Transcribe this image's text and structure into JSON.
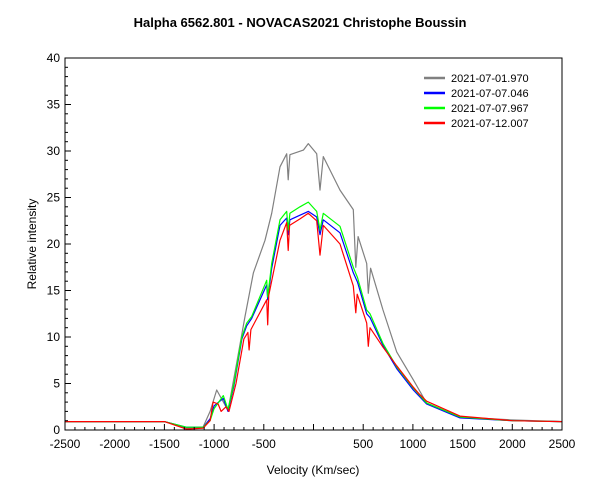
{
  "chart_data": {
    "type": "line",
    "title": "Halpha 6562.801 - NOVACAS2021   Christophe Boussin",
    "xlabel": "Velocity (Km/sec)",
    "ylabel": "Relative intensity",
    "xlim": [
      -2500,
      2500
    ],
    "ylim": [
      0,
      40
    ],
    "grid": false,
    "legend_position": "top-right",
    "x_tick_values": [
      -2500,
      -2000,
      -1500,
      -1000,
      -500,
      0,
      500,
      1000,
      1500,
      2000,
      2500
    ],
    "x_tick_labels": [
      "-2500",
      "-2000",
      "-1500",
      "-1000",
      "-500",
      "",
      "500",
      "1000",
      "1500",
      "2000",
      "2500"
    ],
    "y_tick_values": [
      0,
      5,
      10,
      15,
      20,
      25,
      30,
      35,
      40
    ],
    "y_tick_labels": [
      "0",
      "5",
      "10",
      "15",
      "20",
      "25",
      "30",
      "35",
      "40"
    ],
    "series": [
      {
        "name": "2021-07-01.970",
        "color": "#808080",
        "x": [
          -2500,
          -1500,
          -1276,
          -1112,
          -1040,
          -974,
          -860,
          -773,
          -689,
          -605,
          -488,
          -421,
          -337,
          -270,
          -255,
          -237,
          -102,
          -52,
          32,
          65,
          99,
          267,
          400,
          426,
          449,
          535,
          551,
          574,
          699,
          837,
          1004,
          1138,
          1474,
          1977,
          2500
        ],
        "y": [
          0.9,
          0.9,
          0.2,
          0.3,
          2.0,
          4.3,
          2.1,
          7.2,
          12.2,
          16.9,
          20.4,
          23.3,
          28.3,
          29.7,
          26.9,
          29.6,
          30.1,
          30.8,
          29.7,
          25.8,
          29.4,
          25.8,
          23.7,
          17.5,
          20.8,
          17.9,
          14.7,
          17.4,
          12.9,
          8.4,
          5.4,
          2.9,
          1.4,
          1.1,
          0.9
        ]
      },
      {
        "name": "2021-07-07.046",
        "color": "#0000ff",
        "x": [
          -2500,
          -1500,
          -1280,
          -1110,
          -1040,
          -1000,
          -907,
          -860,
          -800,
          -720,
          -672,
          -622,
          -471,
          -461,
          -421,
          -337,
          -270,
          -255,
          -237,
          -136,
          -52,
          32,
          65,
          99,
          267,
          400,
          443,
          535,
          568,
          699,
          837,
          1004,
          1138,
          1474,
          2000,
          2500
        ],
        "y": [
          0.9,
          0.9,
          0.3,
          0.3,
          1.2,
          2.6,
          3.4,
          2.0,
          4.8,
          9.8,
          11.2,
          12.0,
          15.6,
          14.0,
          17.4,
          22.0,
          22.8,
          21.0,
          22.6,
          23.1,
          23.5,
          22.9,
          21.0,
          22.6,
          21.2,
          16.9,
          15.9,
          12.5,
          12.1,
          9.1,
          6.6,
          4.3,
          2.8,
          1.3,
          1.0,
          0.9
        ]
      },
      {
        "name": "2021-07-07.967",
        "color": "#00ff00",
        "x": [
          -2500,
          -1500,
          -1280,
          -1110,
          -1040,
          -1000,
          -907,
          -860,
          -800,
          -720,
          -672,
          -622,
          -471,
          -461,
          -421,
          -337,
          -270,
          -255,
          -237,
          -136,
          -52,
          32,
          65,
          99,
          267,
          400,
          443,
          535,
          568,
          699,
          837,
          1004,
          1138,
          1474,
          2000,
          2500
        ],
        "y": [
          0.9,
          0.9,
          0.3,
          0.3,
          1.0,
          2.3,
          3.7,
          2.2,
          5.0,
          10.0,
          11.5,
          12.2,
          16.1,
          14.3,
          17.9,
          22.6,
          23.5,
          21.5,
          23.3,
          24.0,
          24.5,
          23.5,
          21.5,
          23.3,
          21.9,
          17.5,
          16.4,
          12.9,
          12.5,
          9.3,
          6.8,
          4.5,
          2.9,
          1.4,
          1.0,
          0.9
        ]
      },
      {
        "name": "2021-07-12.007",
        "color": "#ff0000",
        "x": [
          -2500,
          -1500,
          -1280,
          -1110,
          -1040,
          -1010,
          -960,
          -930,
          -880,
          -850,
          -780,
          -700,
          -660,
          -648,
          -630,
          -471,
          -461,
          -450,
          -337,
          -270,
          -255,
          -240,
          -136,
          -52,
          32,
          65,
          99,
          267,
          400,
          426,
          440,
          535,
          551,
          568,
          699,
          837,
          1004,
          1060,
          1138,
          1474,
          2000,
          2500
        ],
        "y": [
          0.9,
          0.9,
          0.1,
          0.2,
          1.0,
          3.0,
          2.8,
          2.0,
          2.5,
          2.0,
          5.0,
          9.8,
          10.5,
          8.6,
          10.8,
          14.0,
          11.3,
          14.5,
          20.4,
          22.3,
          19.3,
          22.0,
          22.7,
          23.3,
          22.5,
          18.8,
          22.0,
          20.0,
          15.5,
          12.6,
          14.6,
          11.5,
          9.0,
          11.0,
          8.9,
          6.9,
          4.6,
          3.9,
          3.1,
          1.5,
          1.0,
          0.9
        ]
      }
    ]
  }
}
